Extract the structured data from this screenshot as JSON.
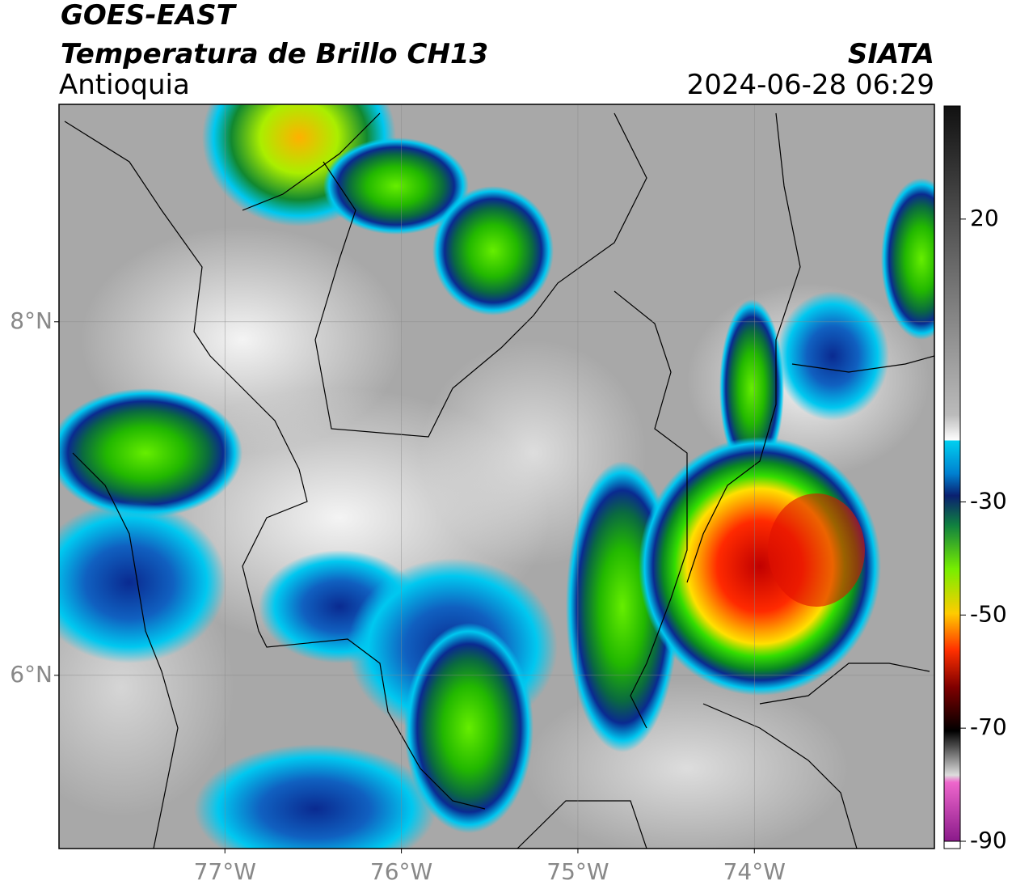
{
  "header": {
    "title": "GOES-EAST",
    "subtitle": "Temperatura de Brillo CH13",
    "region": "Antioquia",
    "source": "SIATA",
    "datetime": "2024-06-28 06:29"
  },
  "map": {
    "lon_lim": [
      -77.94,
      -72.98
    ],
    "lat_lim": [
      5.02,
      9.23
    ],
    "lon_ticks": [
      {
        "value": -77,
        "label": "77°W"
      },
      {
        "value": -76,
        "label": "76°W"
      },
      {
        "value": -75,
        "label": "75°W"
      },
      {
        "value": -74,
        "label": "74°W"
      }
    ],
    "lat_ticks": [
      {
        "value": 8,
        "label": "8°N"
      },
      {
        "value": 6,
        "label": "6°N"
      }
    ]
  },
  "colorbar": {
    "lim": [
      -90,
      40
    ],
    "ticks": [
      20,
      -30,
      -50,
      -70,
      -90
    ]
  }
}
